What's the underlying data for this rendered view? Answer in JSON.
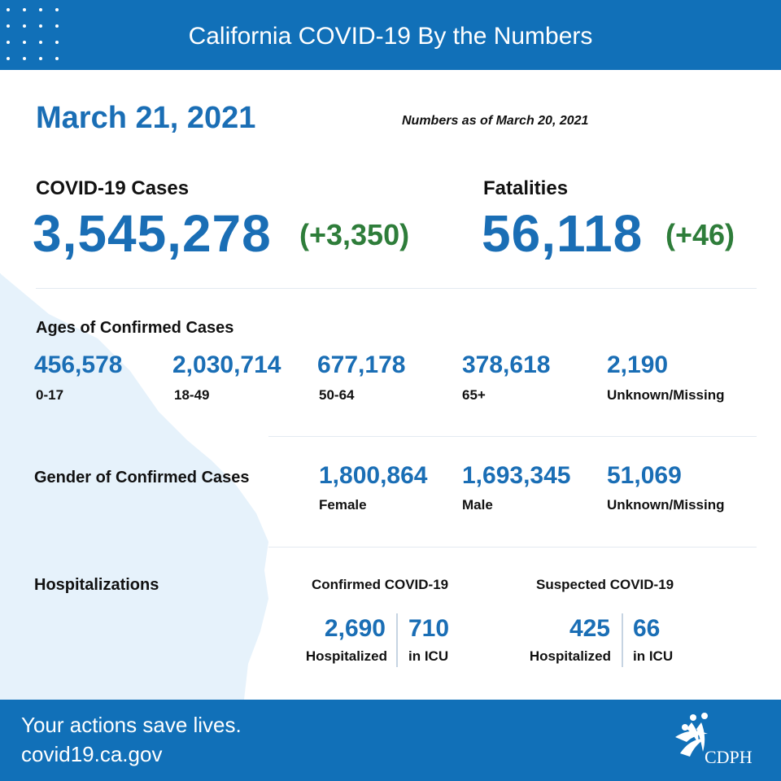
{
  "header": {
    "title": "California COVID-19 By the Numbers"
  },
  "date": "March 21, 2021",
  "as_of": "Numbers as of March 20, 2021",
  "cases": {
    "label": "COVID-19 Cases",
    "total": "3,545,278",
    "delta": "(+3,350)"
  },
  "fatalities": {
    "label": "Fatalities",
    "total": "56,118",
    "delta": "(+46)"
  },
  "ages": {
    "label": "Ages of Confirmed Cases",
    "groups": [
      {
        "value": "456,578",
        "label": "0-17"
      },
      {
        "value": "2,030,714",
        "label": "18-49"
      },
      {
        "value": "677,178",
        "label": "50-64"
      },
      {
        "value": "378,618",
        "label": "65+"
      },
      {
        "value": "2,190",
        "label": "Unknown/Missing"
      }
    ]
  },
  "gender": {
    "label": "Gender of Confirmed Cases",
    "groups": [
      {
        "value": "1,800,864",
        "label": "Female"
      },
      {
        "value": "1,693,345",
        "label": "Male"
      },
      {
        "value": "51,069",
        "label": "Unknown/Missing"
      }
    ]
  },
  "hospitalizations": {
    "label": "Hospitalizations",
    "confirmed": {
      "label": "Confirmed COVID-19",
      "hospitalized": "2,690",
      "hospitalized_label": "Hospitalized",
      "icu": "710",
      "icu_label": "in ICU"
    },
    "suspected": {
      "label": "Suspected COVID-19",
      "hospitalized": "425",
      "hospitalized_label": "Hospitalized",
      "icu": "66",
      "icu_label": "in ICU"
    }
  },
  "footer": {
    "tagline": "Your actions save lives.",
    "url": "covid19.ca.gov"
  },
  "logo": {
    "text": "CDPH"
  },
  "colors": {
    "brand_blue": "#1170b8",
    "number_blue": "#1a6eb5",
    "delta_green": "#2e7d3a",
    "map_tint": "#e6f2fb"
  }
}
